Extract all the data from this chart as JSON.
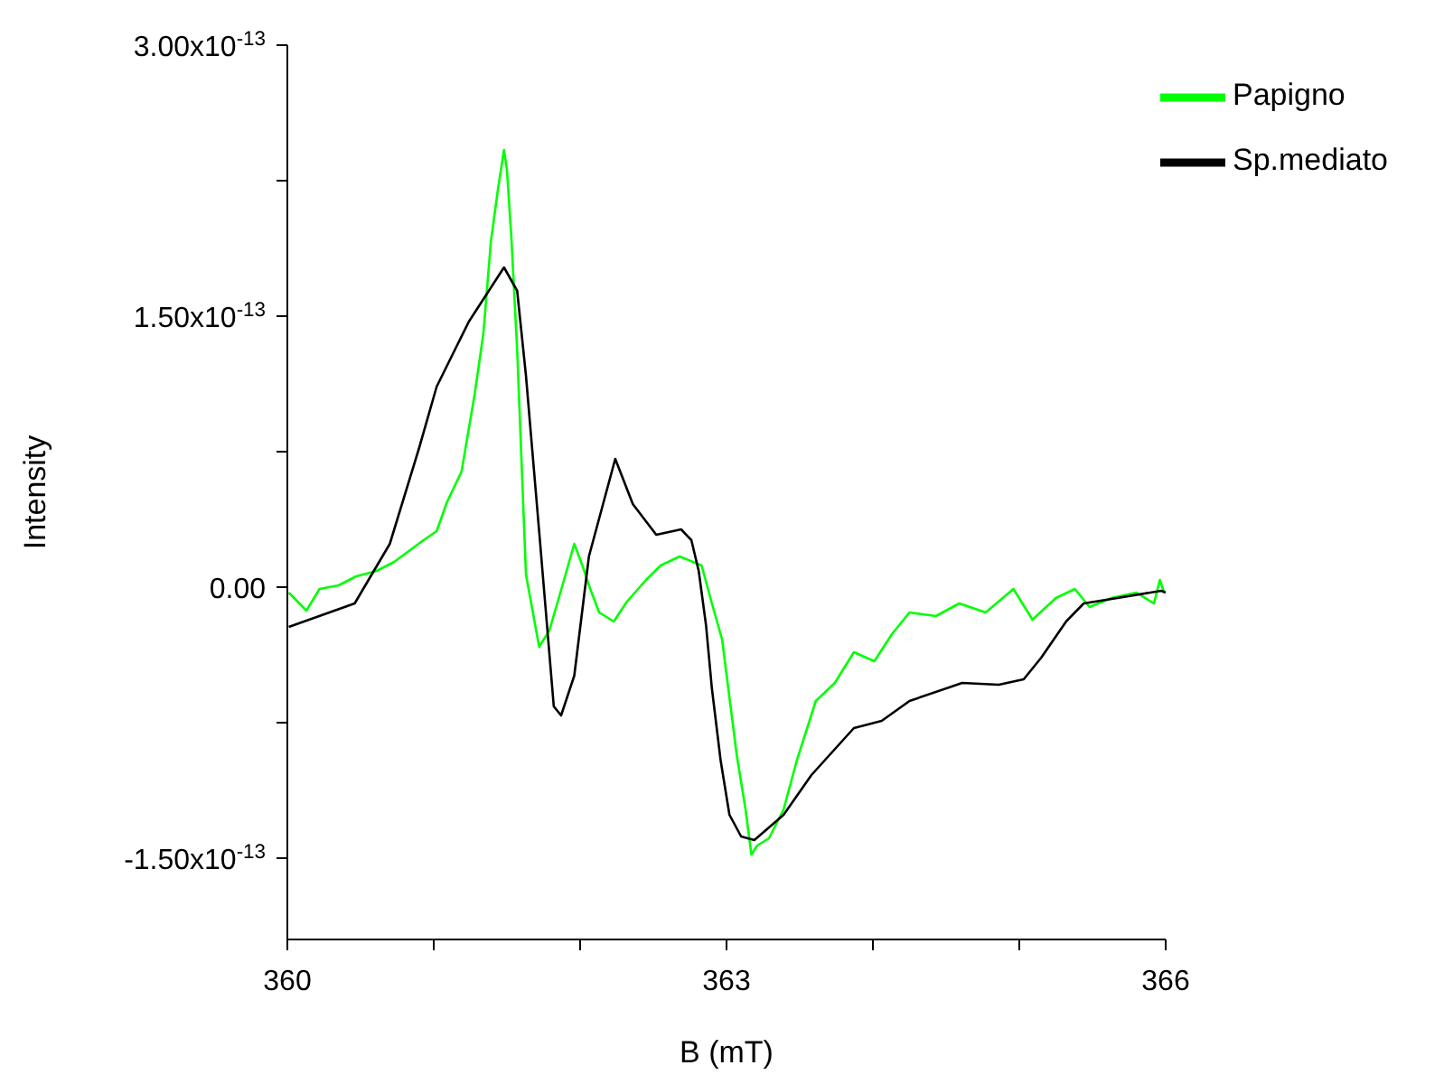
{
  "chart_data": {
    "type": "line",
    "xlabel": "B (mT)",
    "ylabel": "Intensity",
    "xlim": [
      360,
      366
    ],
    "xticks": [
      360,
      {
        "value": 361,
        "label": null
      },
      {
        "value": 362,
        "label": null
      },
      363,
      {
        "value": 364,
        "label": null
      },
      {
        "value": 365,
        "label": null
      },
      366
    ],
    "ylim": [
      -1.95e-13,
      3e-13
    ],
    "yticks": [
      {
        "value": -1.5e-13,
        "label": "-1.50x10$^{-13}$"
      },
      {
        "value": -7.5e-14,
        "label": null
      },
      {
        "value": 0,
        "label": "0.00"
      },
      {
        "value": 7.5e-14,
        "label": null
      },
      {
        "value": 1.5e-13,
        "label": "1.50x10$^{-13}$"
      },
      {
        "value": 2.25e-13,
        "label": null
      },
      {
        "value": 3e-13,
        "label": "3.00x10$^{-13}$"
      }
    ],
    "grid": false,
    "legend": "top right",
    "line_style": "solid",
    "series": [
      {
        "name": "Papigno",
        "color": "#00ff00",
        "x": [
          360.01,
          360.13,
          360.22,
          360.35,
          360.47,
          360.61,
          360.73,
          360.93,
          361.02,
          361.09,
          361.19,
          361.28,
          361.34,
          361.39,
          361.44,
          361.48,
          361.5,
          361.53,
          361.57,
          361.63,
          361.72,
          361.79,
          361.89,
          361.96,
          362.02,
          362.06,
          362.13,
          362.23,
          362.32,
          362.45,
          362.55,
          362.68,
          362.83,
          362.9,
          362.97,
          363.07,
          363.13,
          363.17,
          363.21,
          363.29,
          363.39,
          363.48,
          363.61,
          363.74,
          363.87,
          364.01,
          364.13,
          364.25,
          364.43,
          364.59,
          364.77,
          364.96,
          365.09,
          365.25,
          365.38,
          365.48,
          365.63,
          365.8,
          365.92,
          365.96,
          365.99
        ],
        "values": [
          -3e-15,
          -1.3e-14,
          -1e-15,
          1e-15,
          6e-15,
          9e-15,
          1.4e-14,
          2.6e-14,
          3.1e-14,
          4.7e-14,
          6.4e-14,
          1.07e-13,
          1.41e-13,
          1.91e-13,
          2.21e-13,
          2.42e-13,
          2.31e-13,
          1.94e-13,
          1.31e-13,
          7e-15,
          -3.3e-14,
          -2.4e-14,
          4e-15,
          2.4e-14,
          1.1e-14,
          1e-15,
          -1.4e-14,
          -1.9e-14,
          -8e-15,
          4e-15,
          1.2e-14,
          1.7e-14,
          1.2e-14,
          -9e-15,
          -2.9e-14,
          -9.3e-14,
          -1.23e-13,
          -1.48e-13,
          -1.43e-13,
          -1.39e-13,
          -1.23e-13,
          -9.6e-14,
          -6.3e-14,
          -5.3e-14,
          -3.6e-14,
          -4.1e-14,
          -2.6e-14,
          -1.4e-14,
          -1.6e-14,
          -9e-15,
          -1.4e-14,
          -1e-15,
          -1.8e-14,
          -6e-15,
          -1e-15,
          -1.1e-14,
          -6e-15,
          -3e-15,
          -9e-15,
          4e-15,
          -3e-15
        ]
      },
      {
        "name": "Sp.mediato",
        "color": "#000000",
        "x": [
          360.01,
          360.46,
          360.7,
          360.9,
          361.02,
          361.24,
          361.48,
          361.57,
          361.63,
          361.72,
          361.82,
          361.87,
          361.96,
          362.06,
          362.24,
          362.36,
          362.52,
          362.69,
          362.76,
          362.81,
          362.86,
          362.9,
          362.96,
          363.02,
          363.1,
          363.19,
          363.39,
          363.58,
          363.87,
          364.06,
          364.25,
          364.61,
          364.86,
          365.03,
          365.15,
          365.32,
          365.44,
          365.67,
          365.97,
          366
        ],
        "values": [
          -2.2e-14,
          -9e-15,
          2.4e-14,
          7.7e-14,
          1.11e-13,
          1.47e-13,
          1.77e-13,
          1.64e-13,
          1.17e-13,
          3.1e-14,
          -6.6e-14,
          -7.1e-14,
          -4.9e-14,
          1.7e-14,
          7.1e-14,
          4.6e-14,
          2.9e-14,
          3.2e-14,
          2.6e-14,
          9e-15,
          -2.1e-14,
          -5.6e-14,
          -9.6e-14,
          -1.26e-13,
          -1.38e-13,
          -1.4e-13,
          -1.26e-13,
          -1.04e-13,
          -7.8e-14,
          -7.4e-14,
          -6.3e-14,
          -5.3e-14,
          -5.4e-14,
          -5.1e-14,
          -3.9e-14,
          -1.9e-14,
          -9e-15,
          -6e-15,
          -2e-15,
          -3e-15
        ]
      }
    ]
  }
}
